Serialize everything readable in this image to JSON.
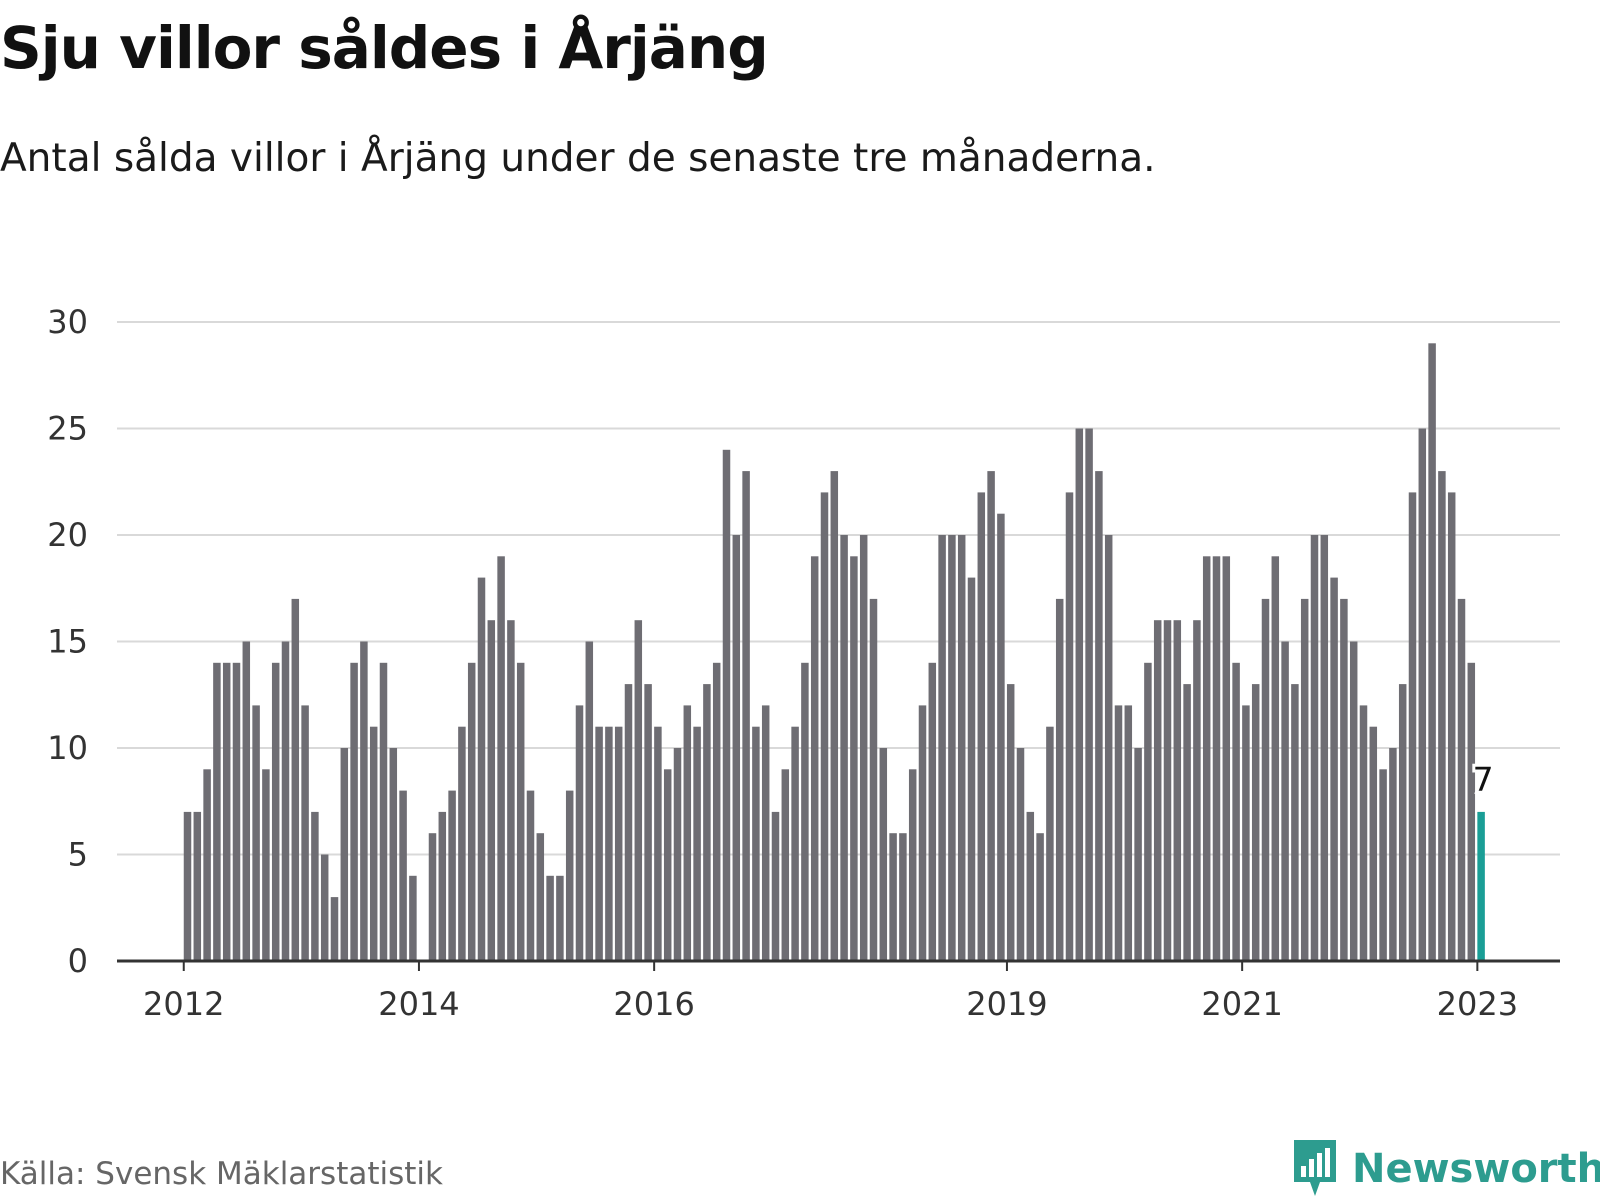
{
  "header": {
    "title": "Sju villor såldes i Årjäng",
    "subtitle": "Antal sålda villor i Årjäng under de senaste tre månaderna."
  },
  "footer": {
    "source": "Källa: Svensk Mäklarstatistik",
    "brand": "Newsworthy"
  },
  "colors": {
    "bar": "#6e6d73",
    "highlight": "#1a9e96",
    "brand": "#2d9c8f",
    "grid": "#d9d9d9",
    "axis": "#333333"
  },
  "chart_data": {
    "type": "bar",
    "grid": true,
    "ylim": [
      0,
      30
    ],
    "yticks": [
      0,
      5,
      10,
      15,
      20,
      25,
      30
    ],
    "x_tick_labels": [
      {
        "label": "2012",
        "index": 0
      },
      {
        "label": "2014",
        "index": 24
      },
      {
        "label": "2016",
        "index": 48
      },
      {
        "label": "2019",
        "index": 84
      },
      {
        "label": "2021",
        "index": 108
      },
      {
        "label": "2023",
        "index": 132
      }
    ],
    "highlight_last": true,
    "annotations": [
      {
        "index": 132,
        "text": "7"
      }
    ],
    "values": [
      7,
      7,
      9,
      14,
      14,
      14,
      15,
      12,
      9,
      14,
      15,
      17,
      12,
      7,
      5,
      3,
      10,
      14,
      15,
      11,
      14,
      10,
      8,
      4,
      0,
      6,
      7,
      8,
      11,
      14,
      18,
      16,
      19,
      16,
      14,
      8,
      6,
      4,
      4,
      8,
      12,
      15,
      11,
      11,
      11,
      13,
      16,
      13,
      11,
      9,
      10,
      12,
      11,
      13,
      14,
      24,
      20,
      23,
      11,
      12,
      7,
      9,
      11,
      14,
      19,
      22,
      23,
      20,
      19,
      20,
      17,
      10,
      6,
      6,
      9,
      12,
      14,
      20,
      20,
      20,
      18,
      22,
      23,
      21,
      13,
      10,
      7,
      6,
      11,
      17,
      22,
      25,
      25,
      23,
      20,
      12,
      12,
      10,
      14,
      16,
      16,
      16,
      13,
      16,
      19,
      19,
      19,
      14,
      12,
      13,
      17,
      19,
      15,
      13,
      17,
      20,
      20,
      18,
      17,
      15,
      12,
      11,
      9,
      10,
      13,
      22,
      25,
      29,
      23,
      22,
      17,
      14,
      7
    ]
  }
}
